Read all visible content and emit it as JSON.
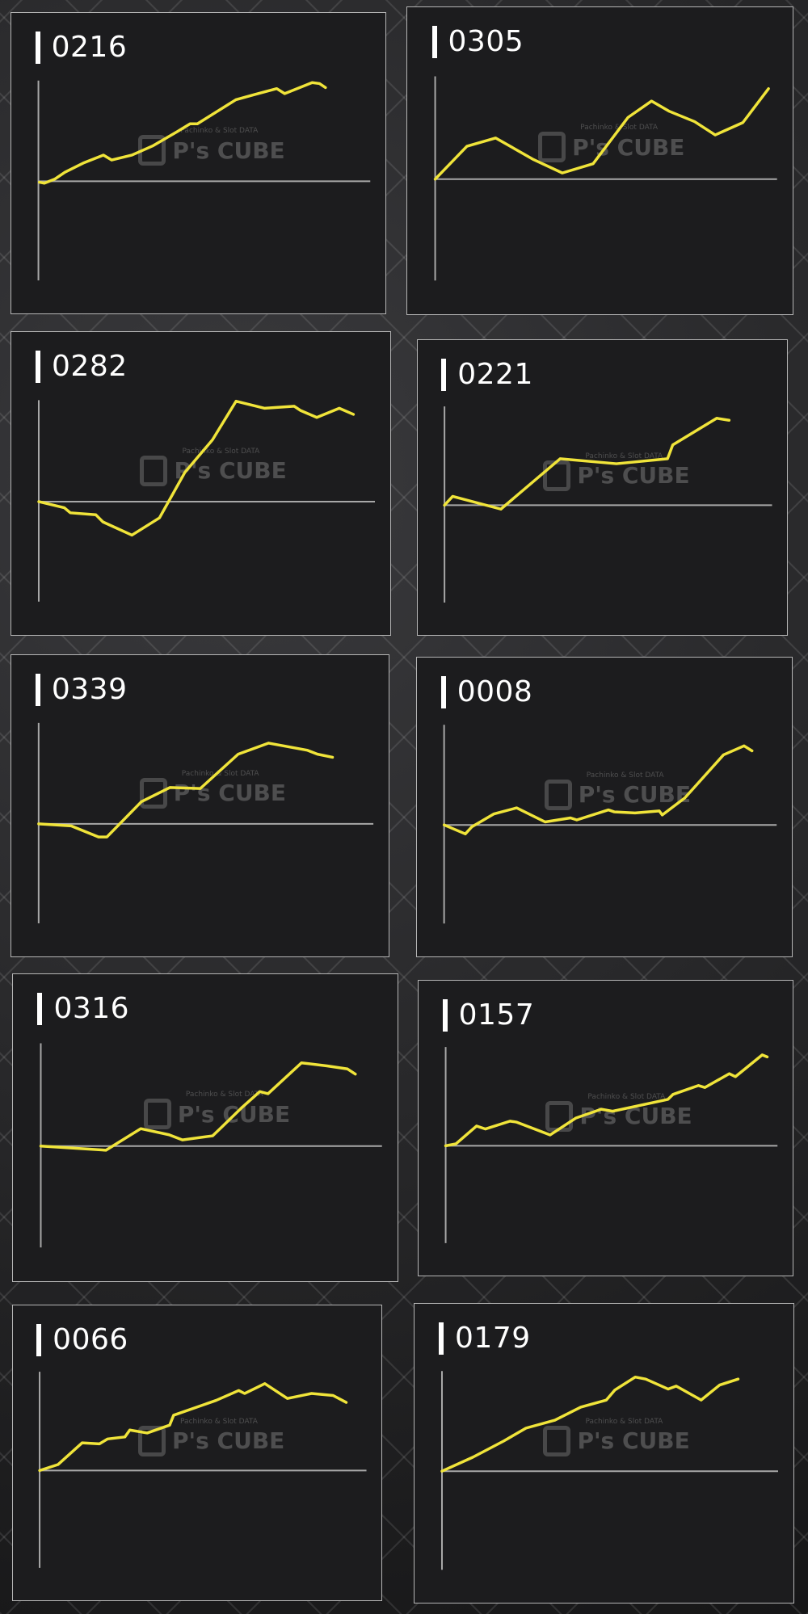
{
  "colors": {
    "line": "#f0e43a",
    "axis": "#a8a8a8",
    "panel": "#1c1c1e",
    "border": "#b5b5b5"
  },
  "watermark": {
    "subtitle": "Pachinko & Slot DATA",
    "logo": "P's CUBE"
  },
  "chart_data": [
    {
      "type": "line",
      "title": "0216",
      "ylim": [
        -100,
        100
      ],
      "xlim": [
        0,
        100
      ],
      "x": [
        0.3,
        1.8,
        4.9,
        8,
        13.5,
        19.6,
        22.1,
        28.2,
        34.4,
        41.7,
        45.7,
        47.9,
        59.5,
        65,
        71.8,
        74.2,
        82.5,
        84.7,
        86.5
      ],
      "y": [
        -1,
        -2,
        2,
        9,
        18,
        26,
        21,
        26,
        35,
        49,
        57,
        57,
        81,
        86,
        92,
        87,
        98,
        97,
        93
      ]
    },
    {
      "type": "line",
      "title": "0305",
      "ylim": [
        -100,
        100
      ],
      "xlim": [
        0,
        100
      ],
      "x": [
        0,
        9.3,
        17.7,
        28.8,
        37.2,
        46.2,
        56.4,
        63.3,
        68.5,
        75.9,
        81.9,
        90,
        97.5
      ],
      "y": [
        0,
        32,
        40,
        19,
        6,
        15,
        60,
        76,
        66,
        56,
        43,
        55,
        88
      ]
    },
    {
      "type": "line",
      "title": "0282",
      "ylim": [
        -100,
        100
      ],
      "xlim": [
        0,
        100
      ],
      "x": [
        0,
        7.6,
        9.4,
        17,
        19.1,
        27.7,
        35.9,
        43.5,
        51.7,
        58.7,
        67.2,
        76,
        77.8,
        82.7,
        89.4,
        93.6
      ],
      "y": [
        0,
        -6,
        -11,
        -13,
        -20,
        -33,
        -16,
        29,
        61,
        99,
        92,
        94,
        90,
        83,
        92,
        86
      ]
    },
    {
      "type": "line",
      "title": "0221",
      "ylim": [
        -100,
        100
      ],
      "xlim": [
        0,
        100
      ],
      "x": [
        0,
        2.5,
        17.2,
        35.3,
        52.5,
        68.1,
        69.7,
        83.1,
        86.9
      ],
      "y": [
        0,
        9,
        -4,
        47,
        42,
        47,
        61,
        88,
        86
      ]
    },
    {
      "type": "line",
      "title": "0339",
      "ylim": [
        -100,
        100
      ],
      "xlim": [
        0,
        100
      ],
      "x": [
        0,
        9.7,
        17.9,
        20.4,
        30.7,
        39.2,
        48.3,
        59.6,
        68.7,
        80.2,
        83.3,
        87.8
      ],
      "y": [
        0,
        -2,
        -13,
        -13,
        22,
        36,
        35,
        69,
        80,
        73,
        69,
        66
      ]
    },
    {
      "type": "line",
      "title": "0008",
      "ylim": [
        -100,
        100
      ],
      "xlim": [
        0,
        100
      ],
      "x": [
        0,
        6.4,
        8.3,
        15,
        21.8,
        30.4,
        38,
        39.9,
        49.4,
        51.2,
        57.4,
        64.7,
        65.6,
        72.4,
        84,
        90.2,
        92.6
      ],
      "y": [
        0,
        -9,
        -2,
        11,
        17,
        3,
        7,
        5,
        15,
        13,
        12,
        14,
        10,
        27,
        70,
        79,
        74
      ]
    },
    {
      "type": "line",
      "title": "0316",
      "ylim": [
        -100,
        100
      ],
      "xlim": [
        0,
        100
      ],
      "x": [
        0,
        19.1,
        29.3,
        37.6,
        41.5,
        50.4,
        59.1,
        64.2,
        66.6,
        76.4,
        83.9,
        89.9,
        92.2
      ],
      "y": [
        0,
        -4,
        17,
        11,
        6,
        10,
        38,
        53,
        51,
        81,
        78,
        75,
        70
      ]
    },
    {
      "type": "line",
      "title": "0157",
      "ylim": [
        -100,
        100
      ],
      "xlim": [
        0,
        100
      ],
      "x": [
        0,
        3.1,
        9.3,
        12,
        19.4,
        21.3,
        31.5,
        39.2,
        46.9,
        50.3,
        67,
        68.5,
        76.2,
        78.1,
        85.5,
        87.3,
        95.4,
        96.9
      ],
      "y": [
        0,
        2,
        20,
        17,
        25,
        24,
        11,
        28,
        37,
        35,
        47,
        52,
        61,
        59,
        73,
        70,
        92,
        90
      ]
    },
    {
      "type": "line",
      "title": "0066",
      "ylim": [
        -100,
        100
      ],
      "xlim": [
        0,
        100
      ],
      "x": [
        0,
        5.6,
        13,
        18.3,
        20.8,
        26.1,
        27.6,
        32.9,
        39.8,
        41,
        54,
        60.9,
        62.7,
        68.9,
        75.8,
        83.2,
        89.8,
        93.8
      ],
      "y": [
        0,
        6,
        28,
        27,
        32,
        34,
        41,
        38,
        46,
        56,
        71,
        81,
        78,
        88,
        73,
        78,
        76,
        69
      ]
    },
    {
      "type": "line",
      "title": "0179",
      "ylim": [
        -100,
        100
      ],
      "xlim": [
        0,
        100
      ],
      "x": [
        0,
        9.2,
        18.3,
        25,
        33.6,
        41.3,
        48.9,
        51.4,
        57.5,
        60.6,
        67.3,
        69.7,
        77.1,
        82.6,
        88.1
      ],
      "y": [
        0,
        14,
        30,
        43,
        51,
        64,
        71,
        81,
        94,
        92,
        82,
        85,
        71,
        86,
        92
      ]
    }
  ]
}
